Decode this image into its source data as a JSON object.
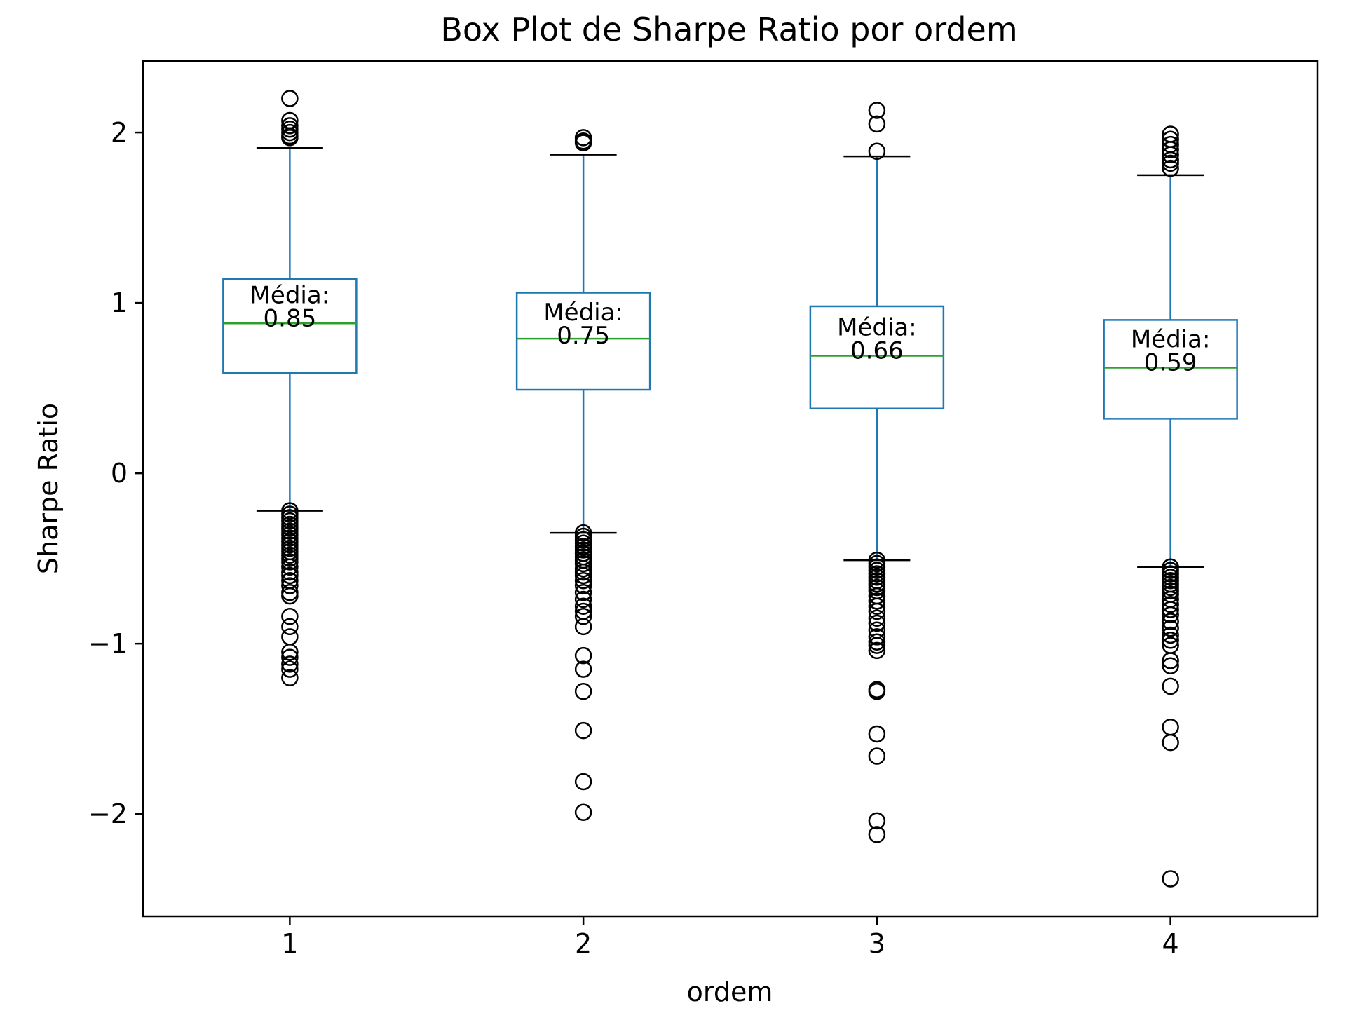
{
  "chart_data": {
    "type": "box",
    "title": "Box Plot de Sharpe Ratio por ordem",
    "xlabel": "ordem",
    "ylabel": "Sharpe Ratio",
    "categories": [
      "1",
      "2",
      "3",
      "4"
    ],
    "ylim": [
      -2.6,
      2.42
    ],
    "yticks": [
      -2,
      -1,
      0,
      1,
      2
    ],
    "ytick_labels": [
      "−2",
      "−1",
      "0",
      "1",
      "2"
    ],
    "grid": false,
    "legend": "none",
    "colors": {
      "box": "#1f77b4",
      "median": "#2ca02c",
      "whisker": "#1f77b4",
      "cap": "#000000",
      "flier": "#000000"
    },
    "annotation_prefix": "Média:",
    "boxes": [
      {
        "label": "1",
        "whislo": -0.22,
        "q1": 0.59,
        "med": 0.88,
        "q3": 1.14,
        "whishi": 1.91,
        "mean": 0.85,
        "mean_label": "0.85",
        "fliers": [
          2.2,
          2.07,
          2.04,
          2.02,
          2.0,
          1.98,
          1.97,
          -0.22,
          -0.24,
          -0.26,
          -0.28,
          -0.3,
          -0.32,
          -0.34,
          -0.36,
          -0.38,
          -0.4,
          -0.42,
          -0.44,
          -0.46,
          -0.48,
          -0.5,
          -0.52,
          -0.55,
          -0.58,
          -0.6,
          -0.63,
          -0.66,
          -0.7,
          -0.72,
          -0.84,
          -0.9,
          -0.96,
          -1.05,
          -1.08,
          -1.12,
          -1.15,
          -1.2
        ]
      },
      {
        "label": "2",
        "whislo": -0.35,
        "q1": 0.49,
        "med": 0.79,
        "q3": 1.06,
        "whishi": 1.87,
        "mean": 0.75,
        "mean_label": "0.75",
        "fliers": [
          1.97,
          1.95,
          1.94,
          -0.35,
          -0.37,
          -0.39,
          -0.41,
          -0.43,
          -0.45,
          -0.47,
          -0.49,
          -0.51,
          -0.53,
          -0.56,
          -0.58,
          -0.6,
          -0.63,
          -0.66,
          -0.7,
          -0.74,
          -0.78,
          -0.81,
          -0.84,
          -0.9,
          -1.07,
          -1.15,
          -1.28,
          -1.51,
          -1.81,
          -1.99
        ]
      },
      {
        "label": "3",
        "whislo": -0.51,
        "q1": 0.38,
        "med": 0.69,
        "q3": 0.98,
        "whishi": 1.86,
        "mean": 0.66,
        "mean_label": "0.66",
        "fliers": [
          2.13,
          2.05,
          1.89,
          -0.51,
          -0.53,
          -0.55,
          -0.57,
          -0.59,
          -0.61,
          -0.63,
          -0.65,
          -0.67,
          -0.69,
          -0.72,
          -0.75,
          -0.78,
          -0.81,
          -0.85,
          -0.88,
          -0.92,
          -0.96,
          -0.99,
          -1.01,
          -1.04,
          -1.27,
          -1.28,
          -1.53,
          -1.66,
          -2.04,
          -2.12
        ]
      },
      {
        "label": "4",
        "whislo": -0.55,
        "q1": 0.32,
        "med": 0.62,
        "q3": 0.9,
        "whishi": 1.75,
        "mean": 0.59,
        "mean_label": "0.59",
        "fliers": [
          1.99,
          1.96,
          1.93,
          1.9,
          1.87,
          1.84,
          1.82,
          1.79,
          -0.55,
          -0.57,
          -0.59,
          -0.61,
          -0.63,
          -0.65,
          -0.67,
          -0.69,
          -0.71,
          -0.74,
          -0.77,
          -0.8,
          -0.83,
          -0.87,
          -0.91,
          -0.95,
          -0.98,
          -1.01,
          -1.1,
          -1.13,
          -1.25,
          -1.49,
          -1.58,
          -2.38
        ]
      }
    ]
  }
}
